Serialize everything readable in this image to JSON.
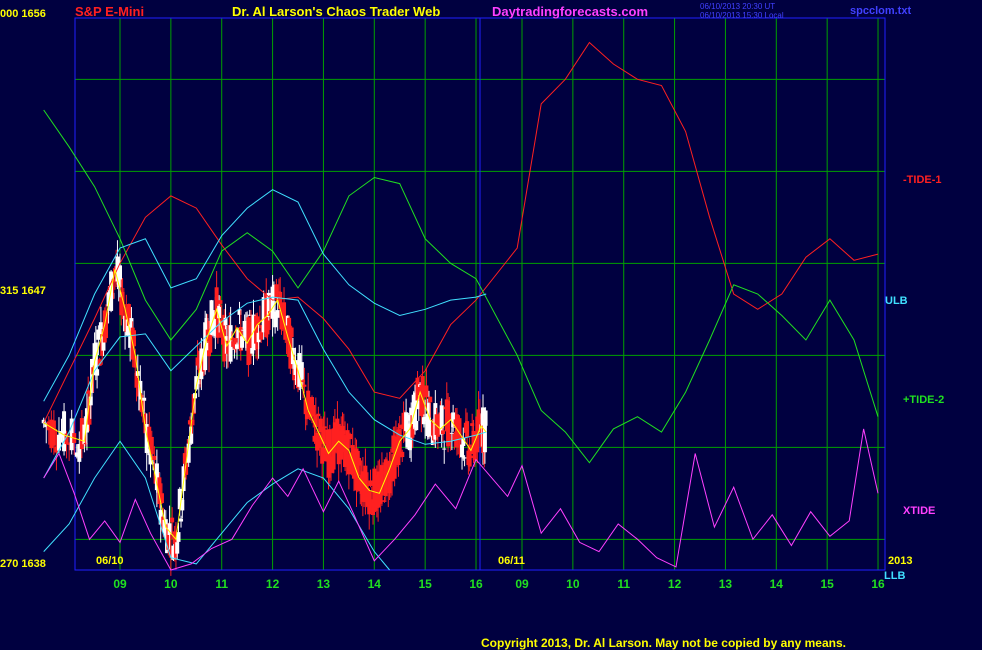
{
  "header": {
    "instrument": "S&P E-Mini",
    "site_title": "Dr. Al Larson's Chaos Trader Web",
    "site_url": "Daytradingforecasts.com",
    "timestamp_1": "06/10/2013 20:30 UT",
    "timestamp_2": "06/10/2013 15:30 Local",
    "file_name": "spcclom.txt"
  },
  "footer": {
    "copyright": "Copyright 2013, Dr. Al Larson. May not be copied by any means."
  },
  "left_axis": {
    "top_label": "000 1656",
    "mid_label": "315 1647",
    "bottom_label": "270 1638"
  },
  "right_labels": {
    "tide1": "-TIDE-1",
    "ulb": "ULB",
    "tide2": "+TIDE-2",
    "xtide": "XTIDE",
    "year": "2013",
    "llb": "LLB"
  },
  "date_labels": [
    "06/10",
    "06/11"
  ],
  "colors": {
    "background": "#000040",
    "grid": "#00a000",
    "frame": "#2020ff",
    "tide1": "#ff2020",
    "tide2": "#20e020",
    "band": "#40e0ff",
    "xtide": "#ff40ff",
    "price_up": "#ffffff",
    "price_down": "#ff2020",
    "avg": "#ffff00"
  },
  "chart_data": {
    "type": "line",
    "ylim": [
      1638,
      1656
    ],
    "x_ticks_day1": [
      "09",
      "10",
      "11",
      "12",
      "13",
      "14",
      "15",
      "16"
    ],
    "x_ticks_day2": [
      "09",
      "10",
      "11",
      "12",
      "13",
      "14",
      "15",
      "16"
    ],
    "series": [
      {
        "name": "-TIDE-1",
        "x": [
          7.5,
          8.0,
          8.5,
          9.0,
          9.5,
          10.0,
          10.5,
          11.0,
          11.5,
          12.0,
          12.5,
          13.0,
          13.5,
          14.0,
          14.5,
          15.0,
          15.5,
          16.0,
          16.5,
          17.0,
          17.5,
          18.0,
          18.5,
          19.0,
          19.5,
          20.0,
          20.5,
          21.0,
          21.5,
          22.0,
          22.5,
          23.0,
          23.5,
          24.0
        ],
        "y": [
          1642.8,
          1644.5,
          1646.2,
          1648.0,
          1649.5,
          1650.2,
          1649.8,
          1648.6,
          1647.5,
          1646.8,
          1646.9,
          1646.2,
          1645.2,
          1643.8,
          1643.6,
          1644.5,
          1646.0,
          1646.8,
          1648.5,
          1653.2,
          1654.0,
          1655.2,
          1654.5,
          1654.0,
          1653.8,
          1652.3,
          1649.5,
          1647.0,
          1646.5,
          1647.0,
          1648.2,
          1648.8,
          1648.1,
          1648.3
        ]
      },
      {
        "name": "+TIDE-2",
        "x": [
          7.5,
          8.0,
          8.5,
          9.0,
          9.5,
          10.0,
          10.5,
          11.0,
          11.5,
          12.0,
          12.5,
          13.0,
          13.5,
          14.0,
          14.5,
          15.0,
          15.5,
          16.0,
          16.5,
          17.0,
          17.5,
          18.0,
          18.5,
          19.0,
          19.5,
          20.0,
          20.5,
          21.0,
          21.5,
          22.0,
          22.5,
          23.0,
          23.5,
          24.0
        ],
        "y": [
          1653.0,
          1651.8,
          1650.5,
          1648.8,
          1646.8,
          1645.5,
          1646.5,
          1648.4,
          1649.0,
          1648.4,
          1647.2,
          1648.4,
          1650.2,
          1650.8,
          1650.6,
          1648.8,
          1648.0,
          1647.5,
          1645.0,
          1643.2,
          1642.5,
          1641.5,
          1642.6,
          1643.0,
          1642.5,
          1643.8,
          1645.5,
          1647.3,
          1647.0,
          1646.3,
          1645.5,
          1646.8,
          1645.5,
          1643.0
        ]
      },
      {
        "name": "ULB",
        "x": [
          7.5,
          8.0,
          8.5,
          9.0,
          9.5,
          10.0,
          10.5,
          11.0,
          11.5,
          12.0,
          12.5,
          13.0,
          13.5,
          14.0,
          14.5,
          15.0,
          15.5,
          16.0,
          16.2
        ],
        "y": [
          1643.5,
          1645.0,
          1647.0,
          1648.5,
          1648.8,
          1647.2,
          1647.5,
          1648.9,
          1649.8,
          1650.4,
          1650.0,
          1648.3,
          1647.3,
          1646.7,
          1646.3,
          1646.5,
          1646.8,
          1646.9,
          1647.0
        ]
      },
      {
        "name": "LLB",
        "x": [
          7.5,
          8.0,
          8.5,
          9.0,
          9.5,
          10.0,
          10.5,
          11.0,
          11.5,
          12.0,
          12.5,
          13.0,
          13.5,
          14.0,
          14.3
        ],
        "y": [
          1638.6,
          1639.5,
          1641.0,
          1642.2,
          1641.0,
          1638.4,
          1638.2,
          1639.2,
          1640.2,
          1640.8,
          1641.3,
          1641.0,
          1640.0,
          1638.6,
          1638.0
        ]
      },
      {
        "name": "MID",
        "x": [
          7.5,
          8.0,
          8.5,
          9.0,
          9.5,
          10.0,
          10.5,
          11.0,
          11.5,
          12.0,
          12.5,
          13.0,
          13.5,
          14.0,
          14.5,
          15.0,
          15.5,
          16.0,
          16.2
        ],
        "y": [
          1641.0,
          1642.5,
          1644.5,
          1645.6,
          1645.7,
          1644.5,
          1645.3,
          1646.1,
          1646.7,
          1646.9,
          1646.8,
          1645.2,
          1643.8,
          1642.9,
          1642.4,
          1642.1,
          1642.2,
          1642.4,
          1642.5
        ]
      },
      {
        "name": "XTIDE",
        "x": [
          7.5,
          7.8,
          8.1,
          8.4,
          8.7,
          9.0,
          9.3,
          9.6,
          10.0,
          10.4,
          10.8,
          11.2,
          11.6,
          12.0,
          12.3,
          12.6,
          13.0,
          13.3,
          13.6,
          14.0,
          14.4,
          14.8,
          15.2,
          15.6,
          16.0,
          16.3,
          16.6,
          17.0,
          17.4,
          17.8,
          18.2,
          18.6,
          19.0,
          19.4,
          19.8,
          20.2,
          20.6,
          21.0,
          21.4,
          21.8,
          22.2,
          22.6,
          23.0,
          23.4,
          23.7,
          24.0
        ],
        "y": [
          1641.0,
          1641.8,
          1640.5,
          1639.0,
          1639.6,
          1638.9,
          1640.3,
          1639.2,
          1638.0,
          1638.2,
          1638.7,
          1639.0,
          1640.1,
          1641.0,
          1640.4,
          1641.3,
          1639.9,
          1640.9,
          1639.8,
          1638.3,
          1639.0,
          1639.8,
          1640.8,
          1640.0,
          1641.6,
          1640.4,
          1641.4,
          1639.2,
          1640.0,
          1638.9,
          1638.6,
          1639.5,
          1639.0,
          1638.4,
          1638.1,
          1641.8,
          1639.4,
          1640.7,
          1639.0,
          1639.8,
          1638.8,
          1639.9,
          1639.1,
          1639.6,
          1642.6,
          1640.5
        ]
      },
      {
        "name": "Price",
        "x": [
          7.5,
          7.9,
          8.3,
          8.5,
          8.7,
          8.9,
          9.1,
          9.3,
          9.5,
          9.7,
          9.9,
          10.1,
          10.3,
          10.5,
          10.7,
          10.9,
          11.1,
          11.3,
          11.5,
          11.7,
          11.9,
          12.1,
          12.3,
          12.5,
          12.7,
          12.9,
          13.1,
          13.3,
          13.5,
          13.7,
          13.9,
          14.1,
          14.3,
          14.5,
          14.7,
          14.9,
          15.1,
          15.3,
          15.5,
          15.7,
          15.9,
          16.1,
          16.2
        ],
        "y": [
          1642.8,
          1642.4,
          1642.2,
          1644.8,
          1646.0,
          1647.8,
          1646.5,
          1645.0,
          1642.6,
          1641.0,
          1639.4,
          1639.0,
          1641.5,
          1644.0,
          1645.5,
          1646.5,
          1645.3,
          1645.9,
          1645.4,
          1646.0,
          1646.3,
          1646.8,
          1645.6,
          1644.5,
          1643.2,
          1642.5,
          1641.8,
          1642.2,
          1641.9,
          1641.0,
          1640.6,
          1640.5,
          1641.3,
          1642.2,
          1642.6,
          1643.8,
          1642.9,
          1642.6,
          1642.9,
          1642.4,
          1641.9,
          1642.7,
          1642.5
        ]
      }
    ]
  }
}
